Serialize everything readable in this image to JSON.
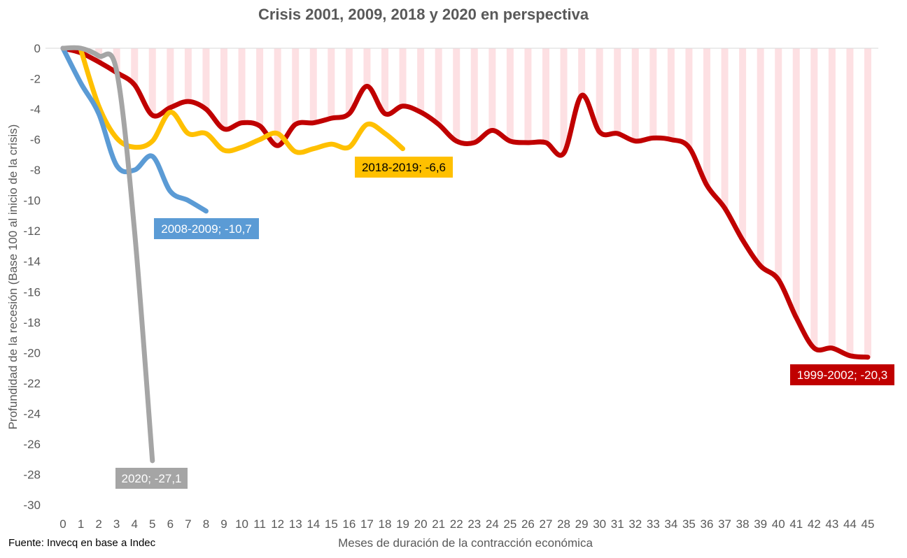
{
  "source": "Fuente:  Invecq en base a Indec",
  "chart_data": {
    "type": "line",
    "title": "Crisis 2001, 2009, 2018 y 2020 en perspectiva",
    "xlabel": "Meses de duración de la contracción económica",
    "ylabel": "Profundidad de la recesión (Base 100 al inicio de la crisis)",
    "xlim": [
      0,
      45
    ],
    "ylim": [
      -30,
      0
    ],
    "x_ticks": [
      0,
      1,
      2,
      3,
      4,
      5,
      6,
      7,
      8,
      9,
      10,
      11,
      12,
      13,
      14,
      15,
      16,
      17,
      18,
      19,
      20,
      21,
      22,
      23,
      24,
      25,
      26,
      27,
      28,
      29,
      30,
      31,
      32,
      33,
      34,
      35,
      36,
      37,
      38,
      39,
      40,
      41,
      42,
      43,
      44,
      45
    ],
    "y_ticks": [
      0,
      -2,
      -4,
      -6,
      -8,
      -10,
      -12,
      -14,
      -16,
      -18,
      -20,
      -22,
      -24,
      -26,
      -28,
      -30
    ],
    "grid": "horizontal",
    "background_bars": {
      "color": "#fde0e3",
      "x": [
        1,
        2,
        3,
        4,
        5,
        6,
        7,
        8,
        9,
        10,
        11,
        12,
        13,
        14,
        15,
        16,
        17,
        18,
        19,
        20,
        21,
        22,
        23,
        24,
        25,
        26,
        27,
        28,
        29,
        30,
        31,
        32,
        33,
        34,
        35,
        36,
        37,
        38,
        39,
        40,
        41,
        42,
        43,
        44,
        45
      ],
      "values": [
        -0.3,
        -0.9,
        -1.6,
        -2.4,
        -4.4,
        -3.9,
        -3.5,
        -4.0,
        -5.3,
        -4.9,
        -5.1,
        -6.4,
        -5.0,
        -4.9,
        -4.6,
        -4.3,
        -2.5,
        -4.3,
        -3.8,
        -4.2,
        -5.0,
        -6.1,
        -6.2,
        -5.4,
        -6.1,
        -6.2,
        -6.2,
        -6.9,
        -3.1,
        -5.5,
        -5.6,
        -6.1,
        -5.9,
        -6.0,
        -6.5,
        -9.0,
        -10.5,
        -12.6,
        -14.3,
        -15.2,
        -17.7,
        -19.7,
        -19.7,
        -20.2,
        -20.3
      ]
    },
    "series": [
      {
        "name": "1999-2002",
        "label": "1999-2002; -20,3",
        "color": "#c00000",
        "x": [
          0,
          1,
          2,
          3,
          4,
          5,
          6,
          7,
          8,
          9,
          10,
          11,
          12,
          13,
          14,
          15,
          16,
          17,
          18,
          19,
          20,
          21,
          22,
          23,
          24,
          25,
          26,
          27,
          28,
          29,
          30,
          31,
          32,
          33,
          34,
          35,
          36,
          37,
          38,
          39,
          40,
          41,
          42,
          43,
          44,
          45
        ],
        "values": [
          0,
          -0.3,
          -0.9,
          -1.6,
          -2.4,
          -4.4,
          -3.9,
          -3.5,
          -4.0,
          -5.3,
          -4.9,
          -5.1,
          -6.4,
          -5.0,
          -4.9,
          -4.6,
          -4.3,
          -2.5,
          -4.3,
          -3.8,
          -4.2,
          -5.0,
          -6.1,
          -6.2,
          -5.4,
          -6.1,
          -6.2,
          -6.2,
          -6.9,
          -3.1,
          -5.5,
          -5.6,
          -6.1,
          -5.9,
          -6.0,
          -6.5,
          -9.0,
          -10.5,
          -12.6,
          -14.3,
          -15.2,
          -17.7,
          -19.7,
          -19.7,
          -20.2,
          -20.3
        ]
      },
      {
        "name": "2008-2009",
        "label": "2008-2009; -10,7",
        "color": "#5b9bd5",
        "x": [
          0,
          1,
          2,
          3,
          4,
          5,
          6,
          7,
          8
        ],
        "values": [
          0,
          -2.3,
          -4.3,
          -7.7,
          -8.0,
          -7.1,
          -9.4,
          -10.0,
          -10.7
        ]
      },
      {
        "name": "2018-2019",
        "label": "2018-2019; -6,6",
        "color": "#ffc000",
        "x": [
          1,
          2,
          3,
          4,
          5,
          6,
          7,
          8,
          9,
          10,
          11,
          12,
          13,
          14,
          15,
          16,
          17,
          18,
          19
        ],
        "values": [
          -0.1,
          -3.8,
          -5.9,
          -6.5,
          -6.1,
          -4.2,
          -5.6,
          -5.6,
          -6.7,
          -6.5,
          -6.0,
          -5.6,
          -6.8,
          -6.6,
          -6.3,
          -6.5,
          -5.0,
          -5.6,
          -6.6
        ]
      },
      {
        "name": "2020",
        "label": "2020; -27,1",
        "color": "#a5a5a5",
        "x": [
          0,
          1,
          2,
          3,
          4,
          5
        ],
        "values": [
          0,
          0,
          -0.5,
          -1.5,
          -12.0,
          -27.1
        ]
      }
    ]
  }
}
